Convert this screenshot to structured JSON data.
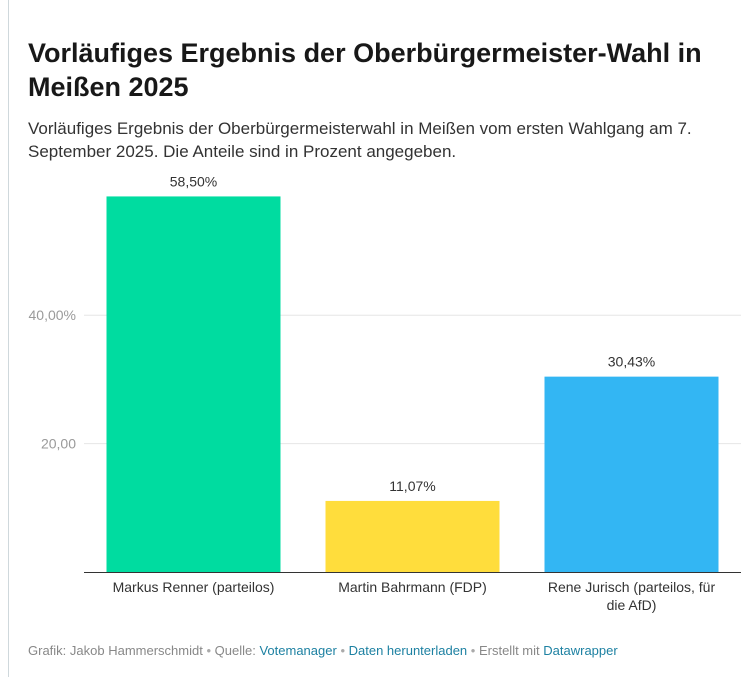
{
  "title": "Vorläufiges Ergebnis der Oberbürgermeister-Wahl in Meißen 2025",
  "subtitle": "Vorläufiges Ergebnis der Oberbürgermeisterwahl in Meißen vom ersten Wahlgang am 7. September 2025. Die Anteile sind in Prozent angegeben.",
  "footer": {
    "credit": "Grafik: Jakob Hammerschmidt",
    "source_label": "Quelle:",
    "source_link": "Votemanager",
    "download_link": "Daten herunterladen",
    "made_with": "Erstellt mit",
    "tool_link": "Datawrapper",
    "separator": "•"
  },
  "chart_data": {
    "type": "bar",
    "categories": [
      "Markus Renner (parteilos)",
      "Martin Bahrmann (FDP)",
      "Rene Jurisch (parteilos, für die AfD)"
    ],
    "category_lines": [
      [
        "Markus Renner (parteilos)"
      ],
      [
        "Martin Bahrmann (FDP)"
      ],
      [
        "Rene Jurisch (parteilos, für",
        "die AfD)"
      ]
    ],
    "values": [
      58.5,
      11.07,
      30.43
    ],
    "value_labels": [
      "58,50%",
      "11,07%",
      "30,43%"
    ],
    "colors": [
      "#00dca0",
      "#ffdd3c",
      "#33b6f3"
    ],
    "yticks": [
      20,
      40
    ],
    "ytick_labels": [
      "20,00",
      "40,00%"
    ],
    "ylim": [
      0,
      60
    ],
    "grid": true,
    "xlabel": "",
    "ylabel": ""
  }
}
